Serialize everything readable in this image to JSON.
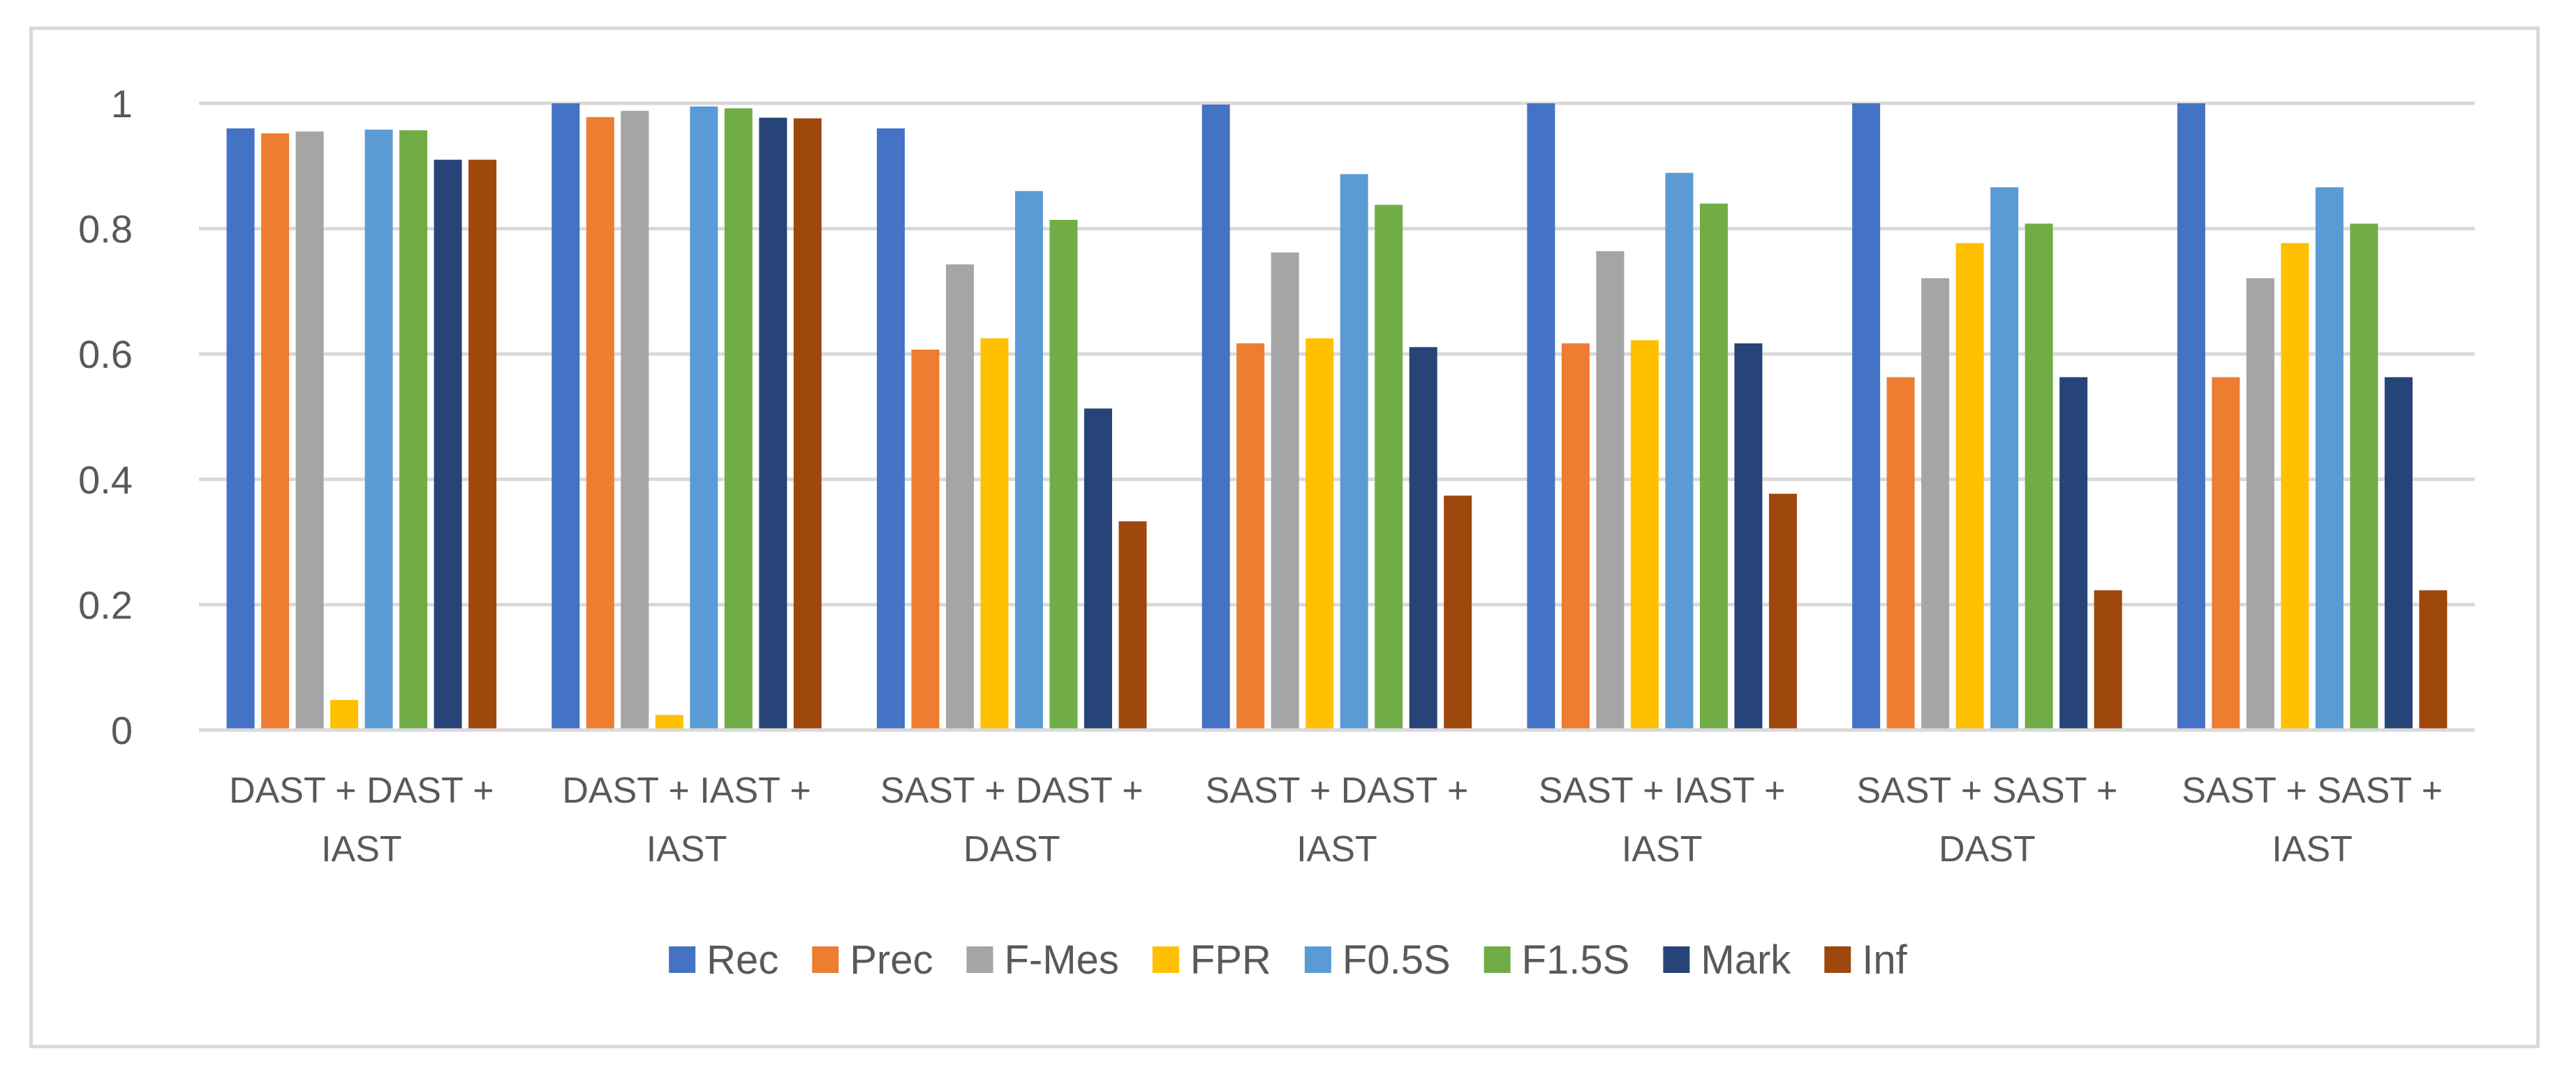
{
  "chart_data": {
    "type": "bar",
    "title": "",
    "xlabel": "",
    "ylabel": "",
    "ylim": [
      0,
      1
    ],
    "yticks": [
      "0",
      "0.2",
      "0.4",
      "0.6",
      "0.8",
      "1"
    ],
    "grid": true,
    "legend_position": "bottom",
    "categories": [
      [
        "DAST + DAST +",
        "IAST"
      ],
      [
        "DAST + IAST +",
        "IAST"
      ],
      [
        "SAST + DAST +",
        "DAST"
      ],
      [
        "SAST + DAST +",
        "IAST"
      ],
      [
        "SAST + IAST +",
        "IAST"
      ],
      [
        "SAST + SAST +",
        "DAST"
      ],
      [
        "SAST + SAST +",
        "IAST"
      ]
    ],
    "series": [
      {
        "name": "Rec",
        "color": "#4472c4",
        "values": [
          0.96,
          1.0,
          0.96,
          0.998,
          1.0,
          1.0,
          1.0
        ]
      },
      {
        "name": "Prec",
        "color": "#ed7d31",
        "values": [
          0.952,
          0.978,
          0.607,
          0.617,
          0.617,
          0.563,
          0.563
        ]
      },
      {
        "name": "F-Mes",
        "color": "#a5a5a5",
        "values": [
          0.955,
          0.988,
          0.743,
          0.762,
          0.764,
          0.721,
          0.721
        ]
      },
      {
        "name": "FPR",
        "color": "#ffc000",
        "values": [
          0.048,
          0.024,
          0.625,
          0.625,
          0.622,
          0.777,
          0.777
        ]
      },
      {
        "name": "F0.5S",
        "color": "#5b9bd5",
        "values": [
          0.958,
          0.995,
          0.86,
          0.887,
          0.889,
          0.866,
          0.866
        ]
      },
      {
        "name": "F1.5S",
        "color": "#70ad47",
        "values": [
          0.957,
          0.992,
          0.814,
          0.838,
          0.84,
          0.808,
          0.808
        ]
      },
      {
        "name": "Mark",
        "color": "#264478",
        "values": [
          0.91,
          0.977,
          0.513,
          0.611,
          0.617,
          0.563,
          0.563
        ]
      },
      {
        "name": "Inf",
        "color": "#9e480e",
        "values": [
          0.91,
          0.976,
          0.333,
          0.374,
          0.377,
          0.223,
          0.223
        ]
      }
    ]
  }
}
